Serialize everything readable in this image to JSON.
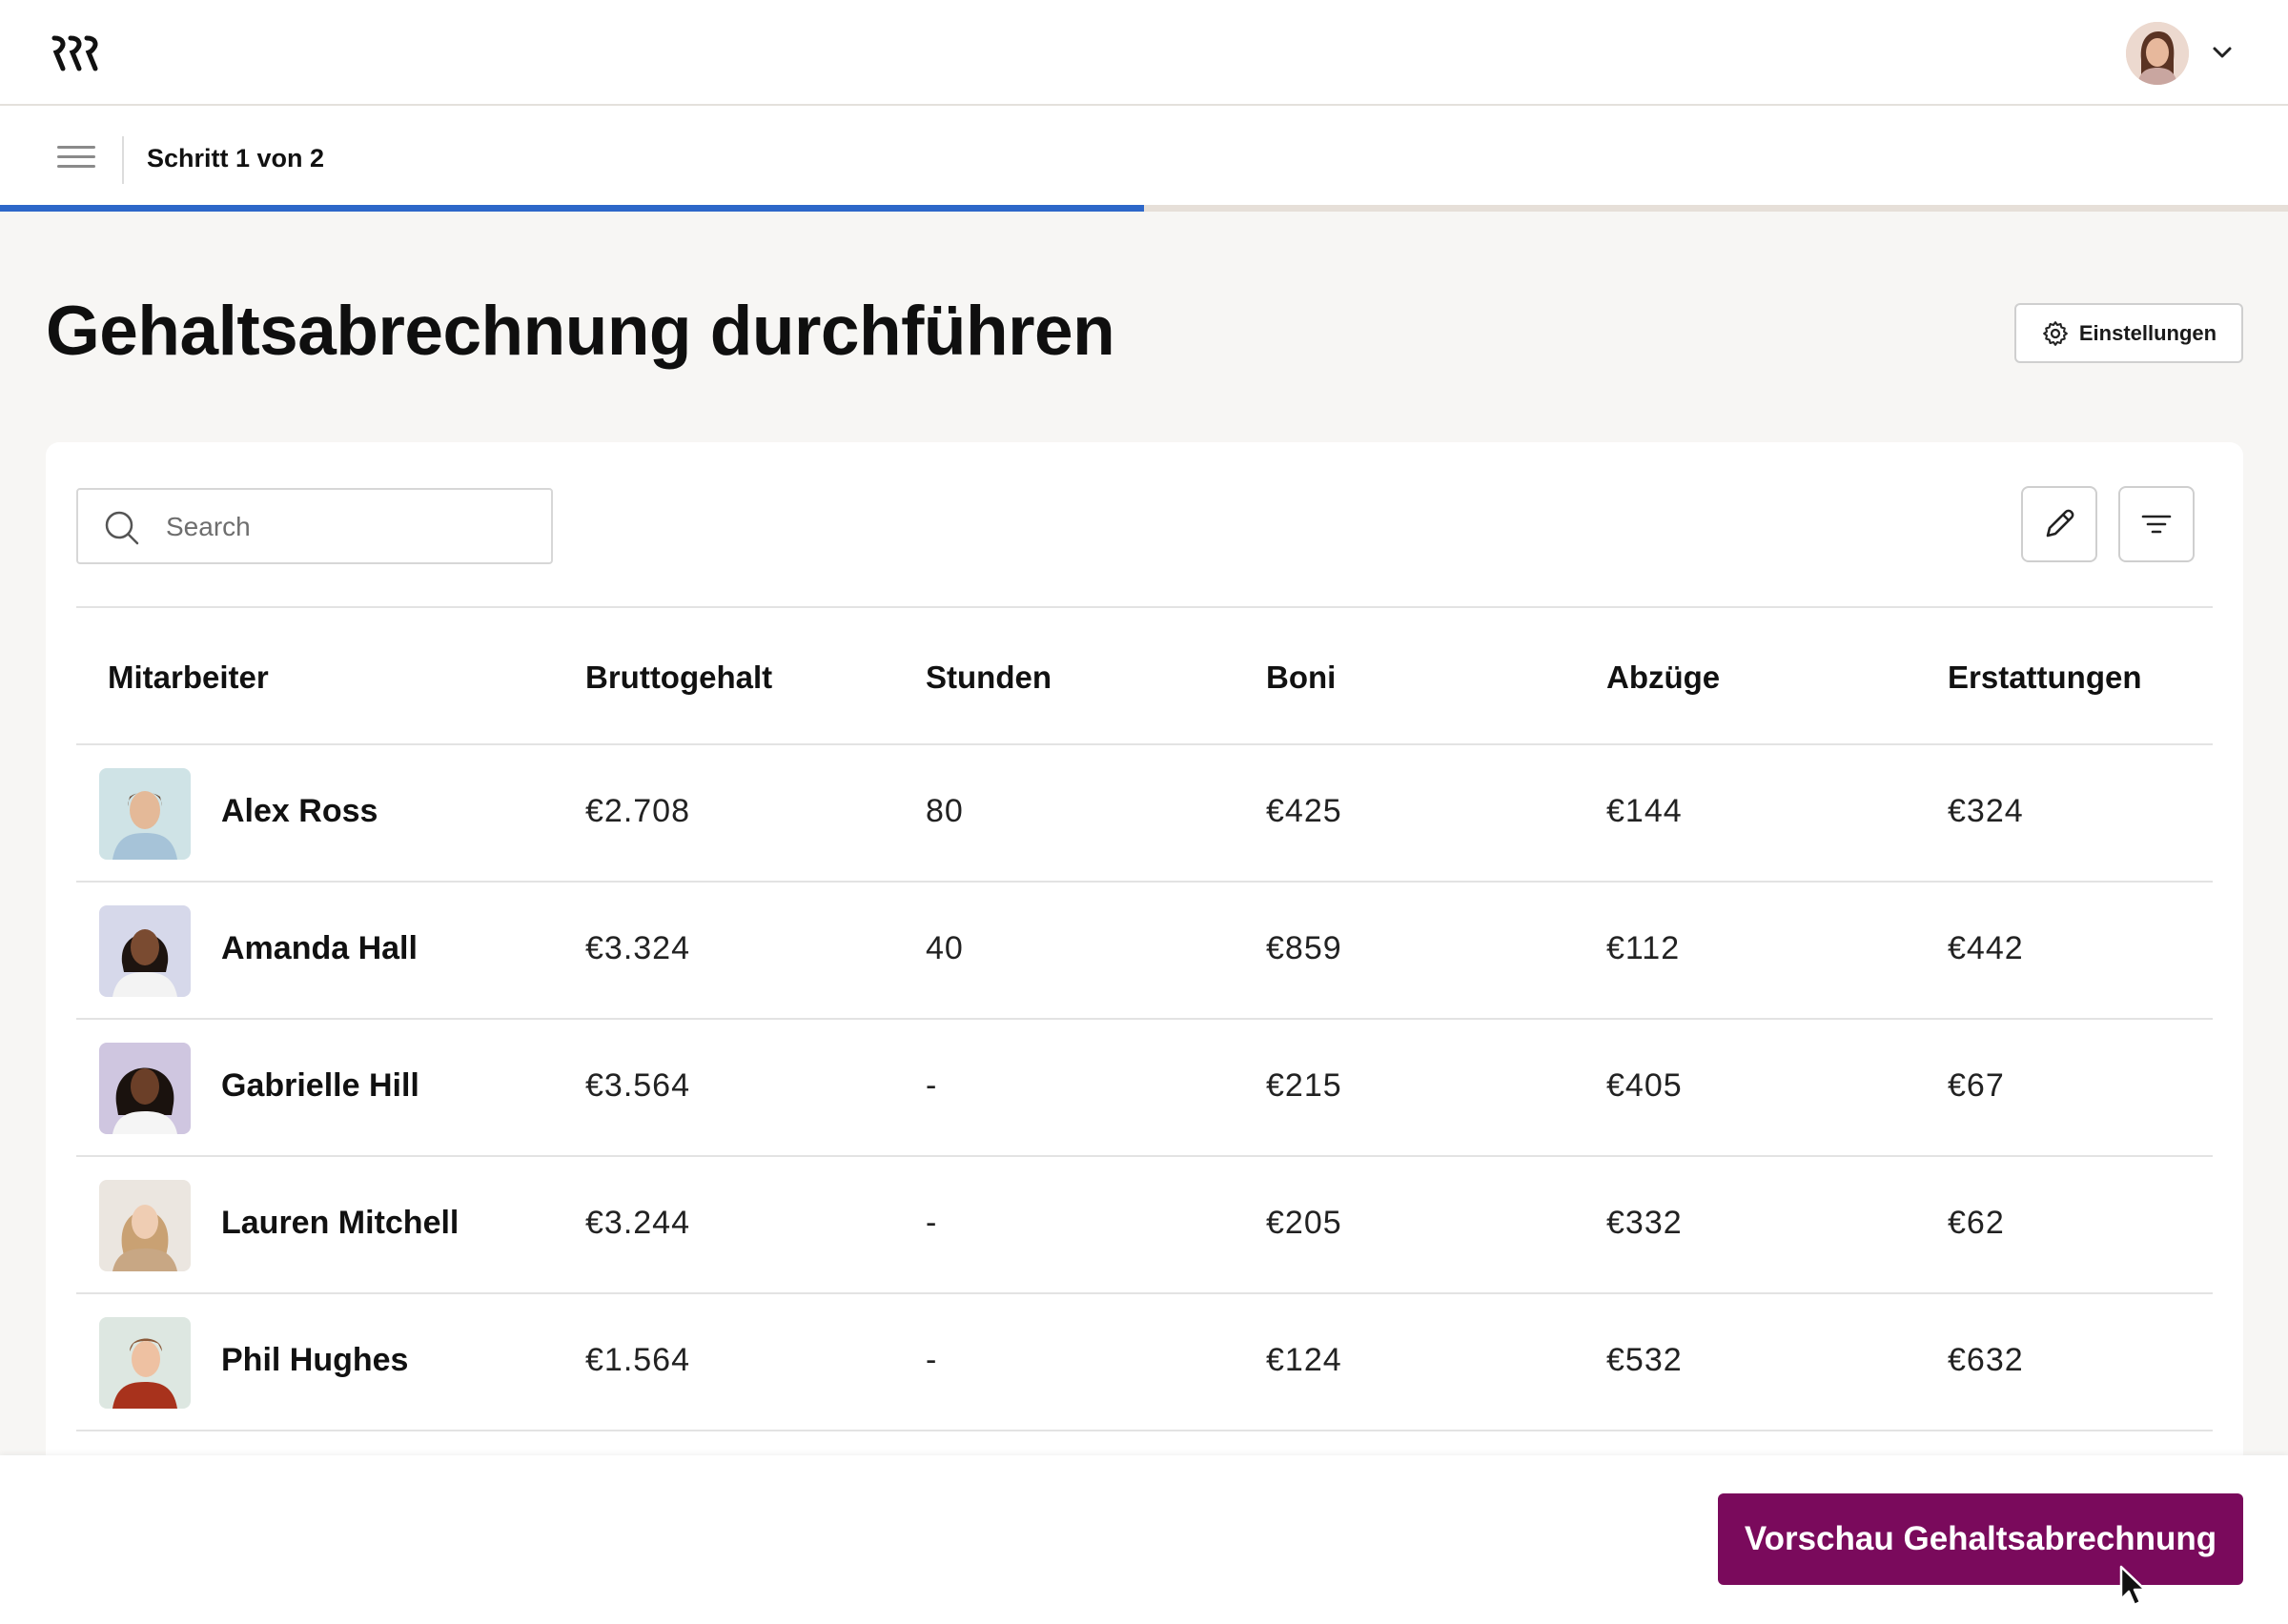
{
  "app": {
    "logo_icon": "rippling-logo-icon"
  },
  "header": {
    "avatar_icon": "user-avatar",
    "menu_icon": "chevron-down-icon"
  },
  "stepper": {
    "label": "Schritt 1 von 2",
    "progress": 0.5,
    "progress_color": "#2d67c9"
  },
  "page": {
    "title": "Gehaltsabrechnung durchführen",
    "settings_label": "Einstellungen"
  },
  "toolbar": {
    "search_placeholder": "Search",
    "edit_icon": "pencil-icon",
    "filter_icon": "filter-icon"
  },
  "table": {
    "columns": [
      "Mitarbeiter",
      "Bruttogehalt",
      "Stunden",
      "Boni",
      "Abzüge",
      "Erstattungen"
    ],
    "rows": [
      {
        "name": "Alex Ross",
        "gross": "€2.708",
        "hours": "80",
        "bonus": "€425",
        "deductions": "€144",
        "reimbursements": "€324"
      },
      {
        "name": "Amanda Hall",
        "gross": "€3.324",
        "hours": "40",
        "bonus": "€859",
        "deductions": "€112",
        "reimbursements": "€442"
      },
      {
        "name": "Gabrielle Hill",
        "gross": "€3.564",
        "hours": "-",
        "bonus": "€215",
        "deductions": "€405",
        "reimbursements": "€67"
      },
      {
        "name": "Lauren Mitchell",
        "gross": "€3.244",
        "hours": "-",
        "bonus": "€205",
        "deductions": "€332",
        "reimbursements": "€62"
      },
      {
        "name": "Phil Hughes",
        "gross": "€1.564",
        "hours": "-",
        "bonus": "€124",
        "deductions": "€532",
        "reimbursements": "€632"
      }
    ]
  },
  "footer": {
    "primary_label": "Vorschau Gehaltsabrechnung",
    "primary_color": "#7a0a5c"
  }
}
